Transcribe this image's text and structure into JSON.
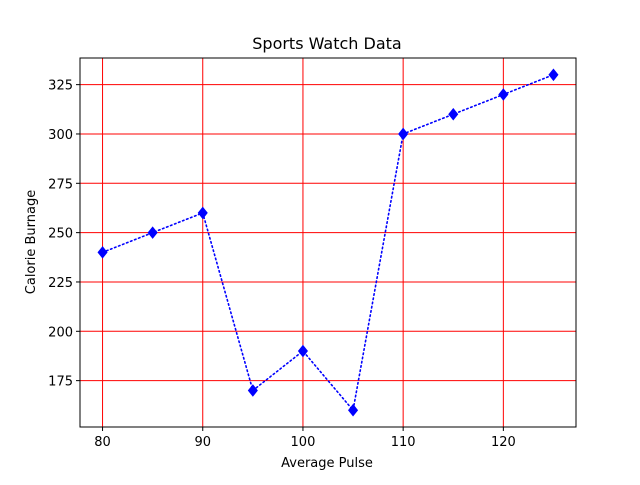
{
  "chart_data": {
    "type": "line",
    "title": "Sports Watch Data",
    "xlabel": "Average Pulse",
    "ylabel": "Calorie Burnage",
    "x": [
      80,
      85,
      90,
      95,
      100,
      105,
      110,
      115,
      120,
      125
    ],
    "series": [
      {
        "values": [
          240,
          250,
          260,
          170,
          190,
          160,
          300,
          310,
          320,
          330
        ],
        "color": "#0000ff",
        "line_style": "dotted",
        "marker": "diamond"
      }
    ],
    "xlim": [
      77.75,
      127.25
    ],
    "ylim": [
      151.5,
      338.5
    ],
    "xticks": [
      80,
      90,
      100,
      110,
      120
    ],
    "yticks": [
      175,
      200,
      225,
      250,
      275,
      300,
      325
    ],
    "grid": {
      "axis": "both",
      "color": "#ff0000"
    },
    "legend": "none"
  }
}
